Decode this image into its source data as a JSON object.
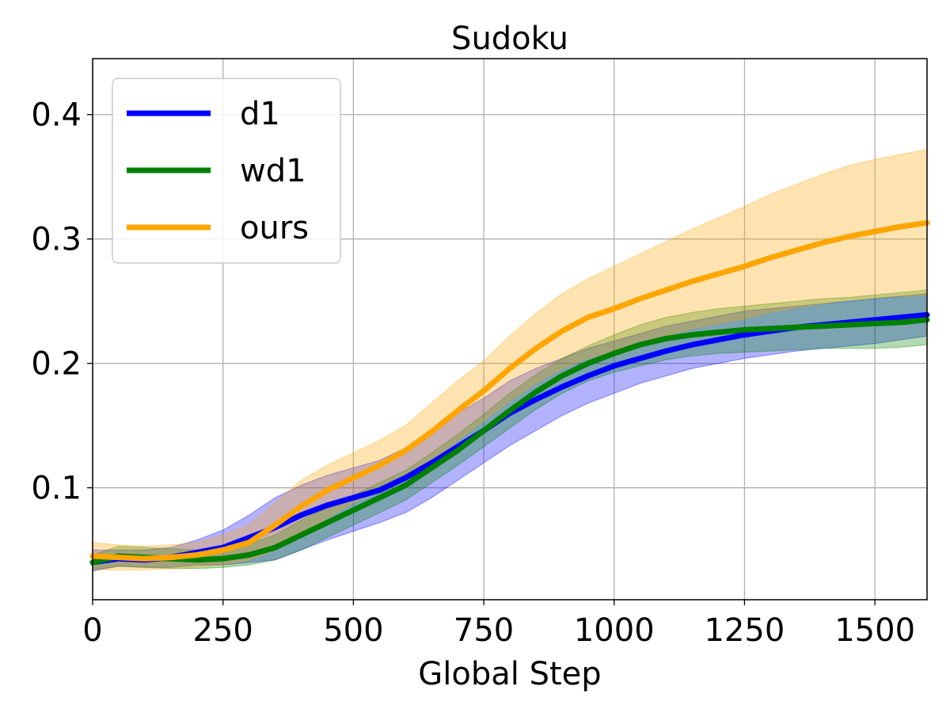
{
  "chart_data": {
    "type": "line",
    "title": "Sudoku",
    "xlabel": "Global Step",
    "ylabel": "",
    "xlim": [
      0,
      1600
    ],
    "ylim": [
      0.01,
      0.445
    ],
    "xticks": [
      0,
      250,
      500,
      750,
      1000,
      1250,
      1500
    ],
    "yticks": [
      0.1,
      0.2,
      0.3,
      0.4
    ],
    "xtick_labels": [
      "0",
      "250",
      "500",
      "750",
      "1000",
      "1250",
      "1500"
    ],
    "ytick_labels": [
      "0.1",
      "0.2",
      "0.3",
      "0.4"
    ],
    "grid": true,
    "legend_position": "top-left",
    "x": [
      0,
      50,
      100,
      150,
      200,
      250,
      300,
      350,
      400,
      450,
      500,
      550,
      600,
      650,
      700,
      750,
      800,
      850,
      900,
      950,
      1000,
      1050,
      1100,
      1150,
      1200,
      1250,
      1300,
      1350,
      1400,
      1450,
      1500,
      1550,
      1600
    ],
    "series": [
      {
        "name": "d1",
        "color": "#0000ff",
        "values": [
          0.04,
          0.043,
          0.042,
          0.044,
          0.048,
          0.052,
          0.06,
          0.068,
          0.078,
          0.086,
          0.092,
          0.098,
          0.108,
          0.12,
          0.133,
          0.146,
          0.16,
          0.171,
          0.181,
          0.19,
          0.198,
          0.204,
          0.21,
          0.215,
          0.219,
          0.223,
          0.226,
          0.229,
          0.231,
          0.233,
          0.235,
          0.237,
          0.239
        ],
        "band_low": [
          0.033,
          0.037,
          0.036,
          0.036,
          0.038,
          0.038,
          0.04,
          0.042,
          0.05,
          0.058,
          0.065,
          0.072,
          0.08,
          0.092,
          0.106,
          0.12,
          0.134,
          0.146,
          0.158,
          0.168,
          0.176,
          0.184,
          0.19,
          0.196,
          0.2,
          0.204,
          0.207,
          0.21,
          0.212,
          0.214,
          0.216,
          0.219,
          0.222
        ],
        "band_high": [
          0.05,
          0.05,
          0.05,
          0.052,
          0.058,
          0.066,
          0.078,
          0.092,
          0.102,
          0.11,
          0.116,
          0.122,
          0.132,
          0.146,
          0.16,
          0.172,
          0.186,
          0.196,
          0.204,
          0.212,
          0.218,
          0.224,
          0.23,
          0.234,
          0.238,
          0.242,
          0.244,
          0.246,
          0.248,
          0.25,
          0.252,
          0.254,
          0.256
        ]
      },
      {
        "name": "wd1",
        "color": "#008000",
        "values": [
          0.04,
          0.045,
          0.044,
          0.043,
          0.042,
          0.043,
          0.046,
          0.052,
          0.062,
          0.072,
          0.082,
          0.092,
          0.102,
          0.116,
          0.13,
          0.146,
          0.162,
          0.177,
          0.19,
          0.2,
          0.208,
          0.215,
          0.22,
          0.223,
          0.225,
          0.227,
          0.228,
          0.229,
          0.23,
          0.231,
          0.232,
          0.233,
          0.235
        ],
        "band_low": [
          0.034,
          0.037,
          0.036,
          0.035,
          0.035,
          0.036,
          0.038,
          0.042,
          0.05,
          0.06,
          0.07,
          0.08,
          0.09,
          0.104,
          0.118,
          0.133,
          0.148,
          0.163,
          0.176,
          0.186,
          0.193,
          0.198,
          0.203,
          0.206,
          0.208,
          0.209,
          0.21,
          0.211,
          0.212,
          0.212,
          0.212,
          0.213,
          0.215
        ],
        "band_high": [
          0.046,
          0.053,
          0.052,
          0.051,
          0.05,
          0.051,
          0.055,
          0.062,
          0.074,
          0.084,
          0.094,
          0.104,
          0.114,
          0.128,
          0.143,
          0.159,
          0.176,
          0.191,
          0.204,
          0.214,
          0.223,
          0.231,
          0.237,
          0.241,
          0.244,
          0.246,
          0.248,
          0.25,
          0.252,
          0.253,
          0.255,
          0.257,
          0.259
        ]
      },
      {
        "name": "ours",
        "color": "#ffa500",
        "values": [
          0.045,
          0.044,
          0.043,
          0.044,
          0.046,
          0.05,
          0.056,
          0.07,
          0.085,
          0.098,
          0.108,
          0.118,
          0.13,
          0.145,
          0.162,
          0.178,
          0.196,
          0.212,
          0.226,
          0.237,
          0.244,
          0.252,
          0.259,
          0.266,
          0.272,
          0.278,
          0.285,
          0.291,
          0.297,
          0.302,
          0.306,
          0.31,
          0.313
        ],
        "band_low": [
          0.034,
          0.034,
          0.034,
          0.035,
          0.036,
          0.038,
          0.042,
          0.05,
          0.062,
          0.076,
          0.088,
          0.098,
          0.108,
          0.122,
          0.138,
          0.154,
          0.17,
          0.184,
          0.196,
          0.204,
          0.21,
          0.216,
          0.222,
          0.228,
          0.232,
          0.236,
          0.241,
          0.245,
          0.248,
          0.251,
          0.253,
          0.254,
          0.255
        ],
        "band_high": [
          0.056,
          0.054,
          0.053,
          0.054,
          0.056,
          0.062,
          0.07,
          0.088,
          0.106,
          0.118,
          0.128,
          0.138,
          0.15,
          0.168,
          0.186,
          0.202,
          0.222,
          0.24,
          0.256,
          0.268,
          0.278,
          0.288,
          0.298,
          0.308,
          0.317,
          0.326,
          0.336,
          0.344,
          0.352,
          0.359,
          0.364,
          0.368,
          0.372
        ]
      }
    ]
  }
}
